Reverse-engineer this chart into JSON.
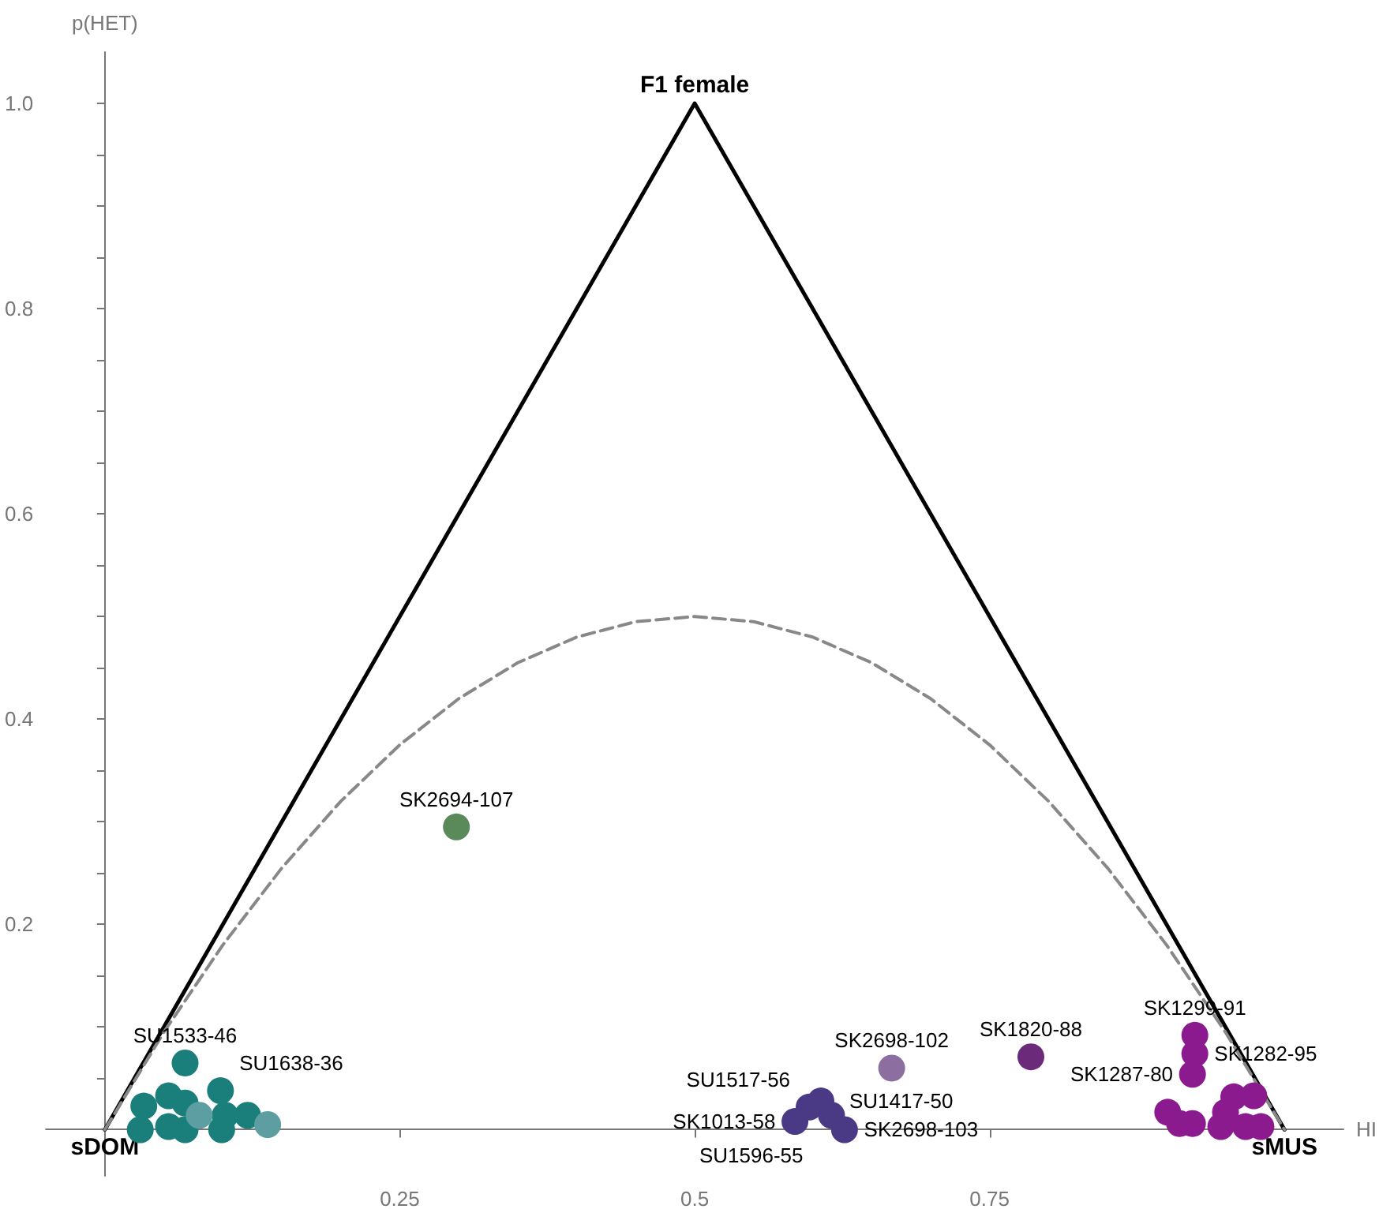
{
  "chart_data": {
    "type": "scatter",
    "xlabel": "HI",
    "ylabel": "p(HET)",
    "xlim": [
      -0.05,
      1.05
    ],
    "ylim": [
      -0.045,
      1.05
    ],
    "xticks": [
      0.25,
      0.5,
      0.75
    ],
    "yticks": [
      {
        "value": 0.05,
        "label": null
      },
      {
        "value": 0.1,
        "label": null
      },
      {
        "value": 0.15,
        "label": null
      },
      {
        "value": 0.2,
        "label": "0.2"
      },
      {
        "value": 0.25,
        "label": null
      },
      {
        "value": 0.3,
        "label": null
      },
      {
        "value": 0.35,
        "label": null
      },
      {
        "value": 0.4,
        "label": "0.4"
      },
      {
        "value": 0.45,
        "label": null
      },
      {
        "value": 0.5,
        "label": null
      },
      {
        "value": 0.55,
        "label": null
      },
      {
        "value": 0.6,
        "label": "0.6"
      },
      {
        "value": 0.65,
        "label": null
      },
      {
        "value": 0.7,
        "label": null
      },
      {
        "value": 0.75,
        "label": null
      },
      {
        "value": 0.8,
        "label": "0.8"
      },
      {
        "value": 0.85,
        "label": null
      },
      {
        "value": 0.9,
        "label": null
      },
      {
        "value": 0.95,
        "label": null
      },
      {
        "value": 1.0,
        "label": "1.0"
      }
    ],
    "grid": false,
    "marker": "circle",
    "series": [
      {
        "type": "line",
        "color": "#000000",
        "marker": "none",
        "line_style": "solid",
        "x": [
          0,
          0.5,
          1
        ],
        "values": [
          0,
          1,
          0
        ],
        "value_labels": [
          "sDOM",
          "F1 female",
          "sMUS"
        ]
      },
      {
        "type": "line",
        "color": "#888888",
        "marker": "none",
        "line_style": "dashed",
        "x": [
          0,
          0.05,
          0.1,
          0.15,
          0.2,
          0.25,
          0.3,
          0.35,
          0.4,
          0.45,
          0.5,
          0.55,
          0.6,
          0.65,
          0.7,
          0.75,
          0.8,
          0.85,
          0.9,
          0.95,
          1
        ],
        "values": [
          0,
          0.095,
          0.18,
          0.255,
          0.32,
          0.375,
          0.42,
          0.455,
          0.48,
          0.495,
          0.5,
          0.495,
          0.48,
          0.455,
          0.42,
          0.375,
          0.32,
          0.255,
          0.18,
          0.095,
          0
        ]
      },
      {
        "color": "#1a7f7a",
        "x": [
          0.033,
          0.054,
          0.068,
          0.068,
          0.098,
          0.102,
          0.121,
          0.03,
          0.054,
          0.068,
          0.099
        ],
        "values": [
          0.023,
          0.033,
          0.026,
          0.065,
          0.038,
          0.014,
          0.014,
          0.0,
          0.003,
          0.0,
          0.0
        ],
        "value_labels": [
          null,
          null,
          null,
          "SU1533-46",
          "SU1638-36",
          null,
          null,
          null,
          null,
          null,
          null
        ]
      },
      {
        "color": "#5d9ea3",
        "x": [
          0.08,
          0.138
        ],
        "values": [
          0.014,
          0.005
        ]
      },
      {
        "color": "#5a8a5a",
        "x": [
          0.298
        ],
        "values": [
          0.295
        ],
        "value_labels": [
          "SK2694-107"
        ]
      },
      {
        "color": "#4a3a85",
        "x": [
          0.585,
          0.597,
          0.607,
          0.616,
          0.627
        ],
        "values": [
          0.008,
          0.022,
          0.028,
          0.014,
          0.0
        ],
        "value_labels": [
          "SK1013-58",
          "SU1517-56",
          "SU1417-50",
          "SU1596-55",
          "SK2698-103"
        ]
      },
      {
        "color": "#8c6fa0",
        "x": [
          0.667
        ],
        "values": [
          0.06
        ],
        "value_labels": [
          "SK2698-102"
        ]
      },
      {
        "color": "#6c2a7a",
        "x": [
          0.785
        ],
        "values": [
          0.071
        ],
        "value_labels": [
          "SK1820-88"
        ]
      },
      {
        "color": "#8b1a8f",
        "x": [
          0.924,
          0.924,
          0.922,
          0.901,
          0.911,
          0.922,
          0.957,
          0.974,
          0.95,
          0.946,
          0.967,
          0.98
        ],
        "values": [
          0.092,
          0.074,
          0.054,
          0.017,
          0.006,
          0.006,
          0.032,
          0.033,
          0.017,
          0.003,
          0.003,
          0.003
        ],
        "value_labels": [
          "SK1299-91",
          "SK1282-95",
          "SK1287-80",
          null,
          null,
          null,
          null,
          null,
          null,
          null,
          null,
          null
        ]
      }
    ]
  }
}
